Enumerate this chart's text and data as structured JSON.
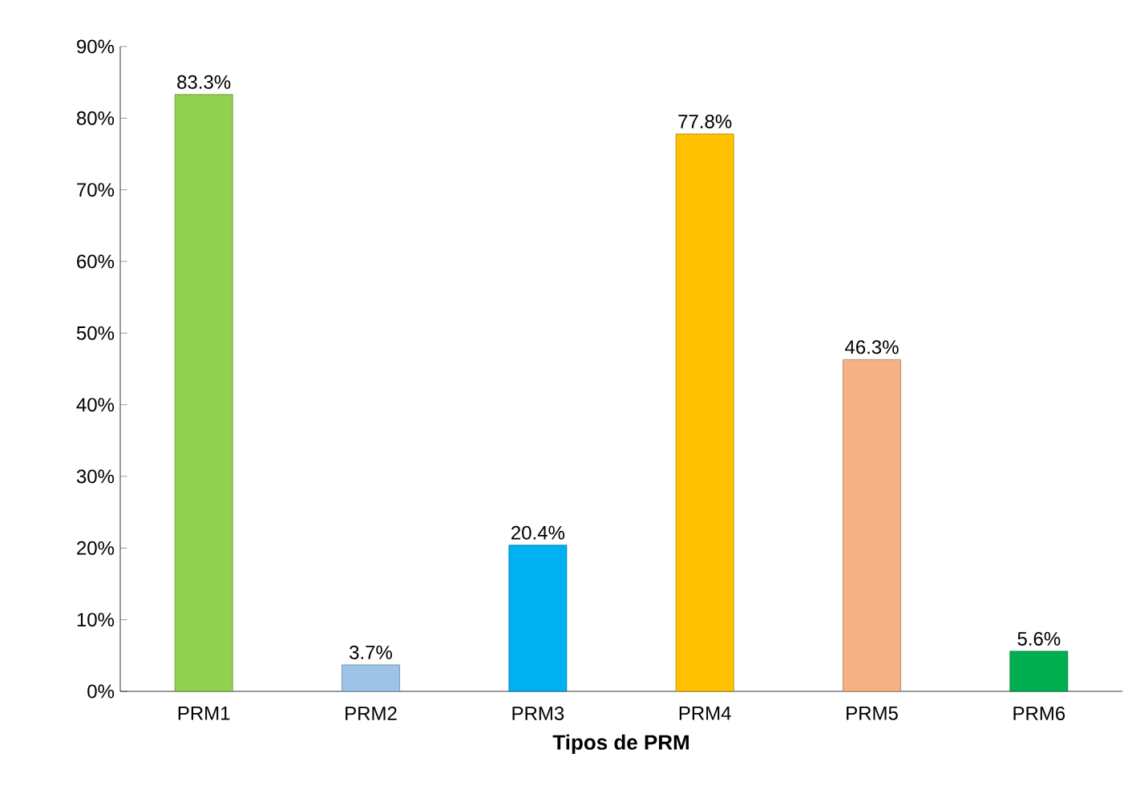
{
  "chart_data": {
    "type": "bar",
    "xlabel": "Tipos de PRM",
    "categories": [
      "PRM1",
      "PRM2",
      "PRM3",
      "PRM4",
      "PRM5",
      "PRM6"
    ],
    "values": [
      83.3,
      3.7,
      20.4,
      77.8,
      46.3,
      5.6
    ],
    "value_labels": [
      "83.3%",
      "3.7%",
      "20.4%",
      "77.8%",
      "46.3%",
      "5.6%"
    ],
    "colors": [
      "#92d050",
      "#9dc3e6",
      "#00b0f0",
      "#ffc000",
      "#f4b183",
      "#00b050"
    ],
    "ylim": [
      0,
      90
    ],
    "yticks": [
      {
        "value": 0,
        "label": "0%"
      },
      {
        "value": 10,
        "label": "10%"
      },
      {
        "value": 20,
        "label": "20%"
      },
      {
        "value": 30,
        "label": "30%"
      },
      {
        "value": 40,
        "label": "40%"
      },
      {
        "value": 50,
        "label": "50%"
      },
      {
        "value": 60,
        "label": "60%"
      },
      {
        "value": 70,
        "label": "70%"
      },
      {
        "value": 80,
        "label": "80%"
      },
      {
        "value": 90,
        "label": "90%"
      }
    ],
    "grid": false
  }
}
